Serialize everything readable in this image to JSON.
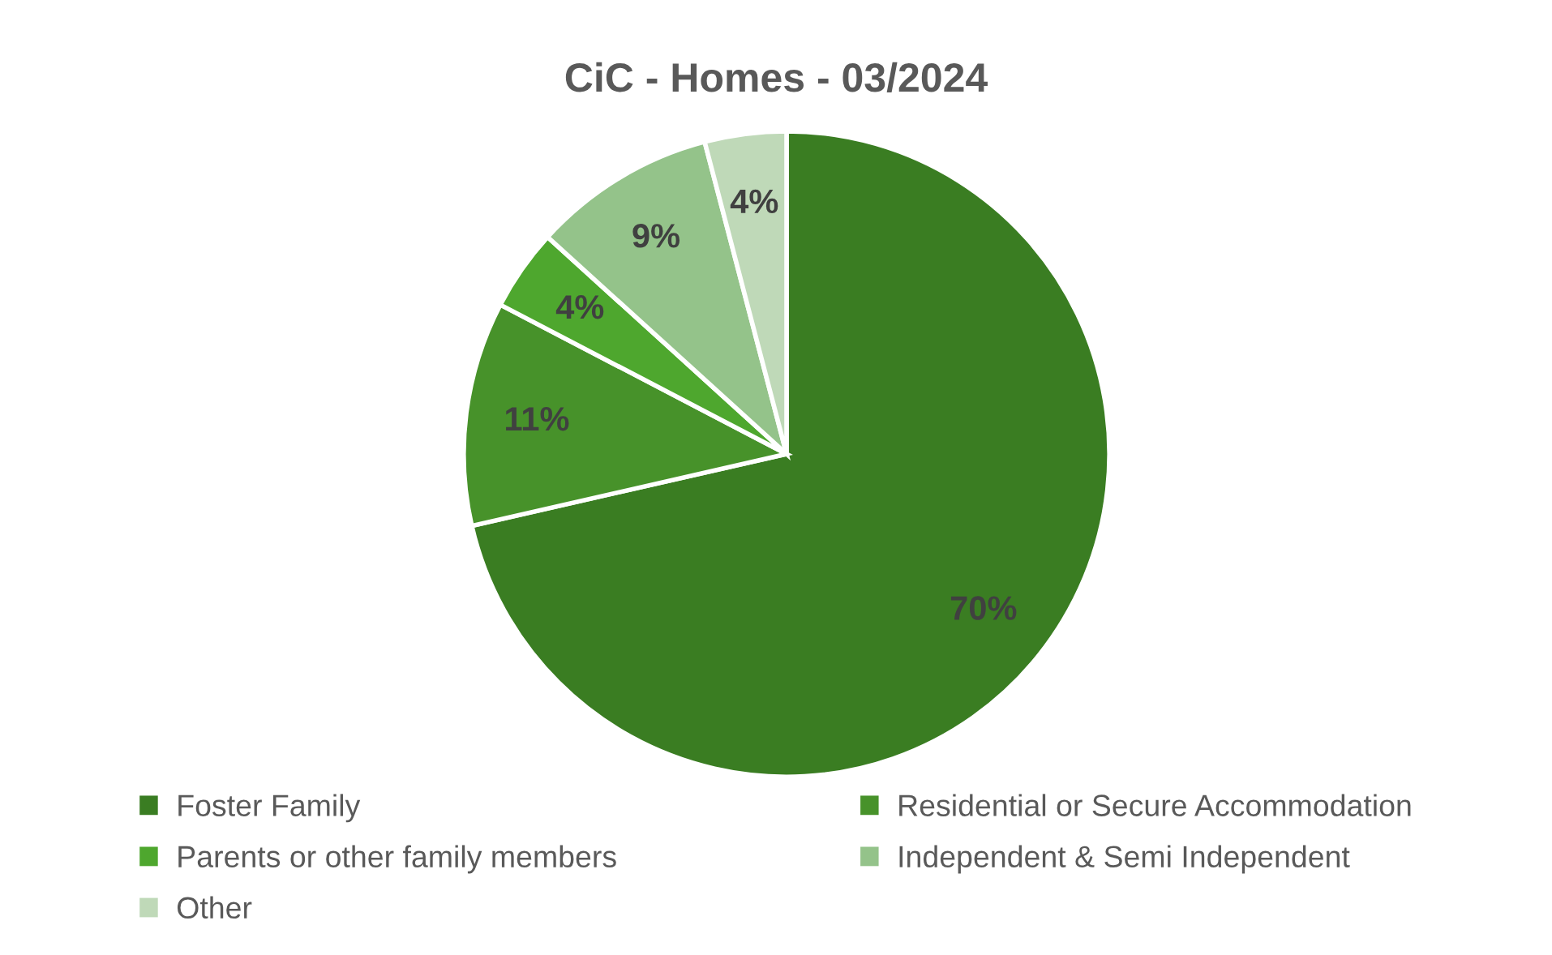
{
  "chart_data": {
    "type": "pie",
    "title": "CiC - Homes - 03/2024",
    "categories": [
      "Foster Family",
      "Residential or Secure Accommodation",
      "Parents or other family members",
      "Independent & Semi Independent",
      "Other"
    ],
    "values": [
      70,
      11,
      4,
      9,
      4
    ],
    "value_labels": [
      "70%",
      "11%",
      "4%",
      "9%",
      "4%"
    ],
    "colors": [
      "#3a7d22",
      "#47922a",
      "#4ea72e",
      "#94c38a",
      "#bfd9b8"
    ],
    "legend": "bottom"
  }
}
